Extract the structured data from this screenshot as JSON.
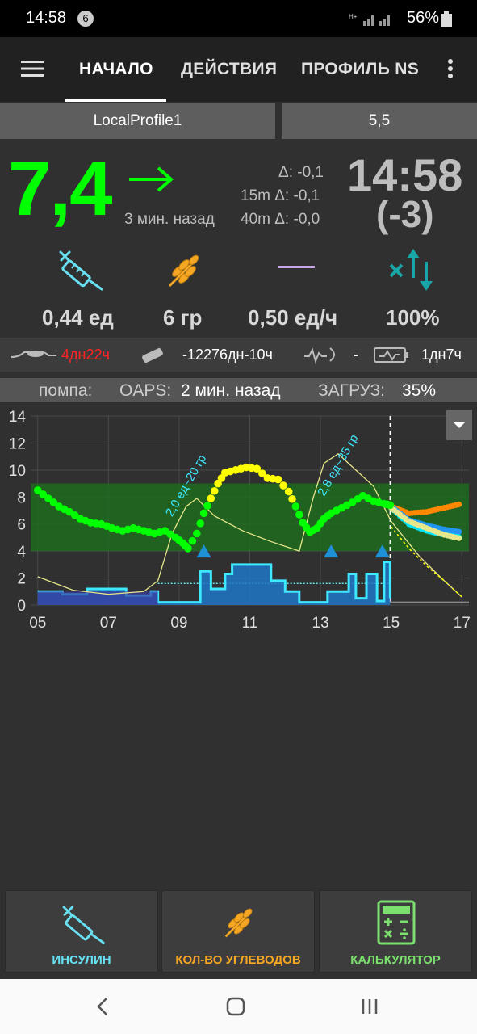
{
  "status_bar": {
    "time": "14:58",
    "notification_count": "6",
    "battery": "56%"
  },
  "tabs": [
    {
      "label": "НАЧАЛО",
      "active": true
    },
    {
      "label": "ДЕЙСТВИЯ",
      "active": false
    },
    {
      "label": "ПРОФИЛЬ NS",
      "active": false
    }
  ],
  "profile": {
    "name": "LocalProfile1",
    "target": "5,5"
  },
  "bg": {
    "value": "7,4",
    "ago": "3 мин. назад",
    "delta": "Δ: -0,1",
    "delta15": "15m Δ: -0,1",
    "delta40": "40m Δ: -0,0",
    "clock": "14:58",
    "clock_offset": "(-3)"
  },
  "summary": {
    "iob": "0,44 ед",
    "cob": "6 гр",
    "basal": "0,50 ед/ч",
    "percent": "100%"
  },
  "devices": {
    "sensor_age": "4дн22ч",
    "reservoir": "-12276дн-10ч",
    "pump_battery": "-",
    "phone_battery": "1дн7ч"
  },
  "pump_status": {
    "pump_label": "помпа:",
    "oaps_label": "OAPS:",
    "oaps_value": "2 мин. назад",
    "load_label": "ЗАГРУЗ:",
    "load_value": "35%"
  },
  "chart_data": {
    "type": "line",
    "x_ticks": [
      "05",
      "07",
      "09",
      "11",
      "13",
      "15",
      "17"
    ],
    "y_ticks": [
      "0",
      "2",
      "4",
      "6",
      "8",
      "10",
      "12",
      "14"
    ],
    "ylim": [
      0,
      14
    ],
    "xlim": [
      4.8,
      17.2
    ],
    "target_range": [
      4,
      9
    ],
    "now": 14.97,
    "annotations": [
      {
        "text": "2,0 ед~20 гр",
        "x": 8.8,
        "y": 6.5
      },
      {
        "text": "2,8 ед~35 гр",
        "x": 13.1,
        "y": 8.0
      }
    ],
    "bg_points": [
      [
        5.0,
        8.5
      ],
      [
        5.3,
        7.9
      ],
      [
        5.6,
        7.3
      ],
      [
        5.9,
        6.9
      ],
      [
        6.2,
        6.4
      ],
      [
        6.5,
        6.1
      ],
      [
        6.8,
        6.0
      ],
      [
        7.1,
        5.7
      ],
      [
        7.4,
        5.5
      ],
      [
        7.7,
        5.7
      ],
      [
        8.0,
        5.5
      ],
      [
        8.3,
        5.3
      ],
      [
        8.6,
        5.5
      ],
      [
        8.9,
        5.0
      ],
      [
        9.1,
        4.6
      ],
      [
        9.25,
        4.2
      ],
      [
        9.5,
        5.3
      ],
      [
        9.7,
        6.8
      ],
      [
        9.9,
        7.9
      ],
      [
        10.1,
        9.0
      ],
      [
        10.3,
        9.8
      ],
      [
        10.6,
        10.0
      ],
      [
        10.9,
        10.2
      ],
      [
        11.2,
        10.1
      ],
      [
        11.5,
        9.4
      ],
      [
        11.8,
        9.3
      ],
      [
        12.1,
        8.4
      ],
      [
        12.3,
        7.3
      ],
      [
        12.5,
        6.1
      ],
      [
        12.7,
        5.4
      ],
      [
        12.9,
        5.7
      ],
      [
        13.1,
        6.4
      ],
      [
        13.3,
        6.8
      ],
      [
        13.6,
        7.2
      ],
      [
        13.9,
        7.6
      ],
      [
        14.2,
        8.1
      ],
      [
        14.5,
        7.7
      ],
      [
        14.8,
        7.5
      ],
      [
        14.97,
        7.4
      ]
    ],
    "bg_yellow_range": [
      9.9,
      12.2
    ],
    "predictions": [
      {
        "color": "#ff8800",
        "points": [
          [
            15.0,
            7.3
          ],
          [
            15.5,
            6.8
          ],
          [
            16.0,
            6.9
          ],
          [
            16.5,
            7.2
          ],
          [
            17.0,
            7.5
          ]
        ]
      },
      {
        "color": "#2196f3",
        "points": [
          [
            15.0,
            7.3
          ],
          [
            15.5,
            6.3
          ],
          [
            16.0,
            5.9
          ],
          [
            16.5,
            5.6
          ],
          [
            17.0,
            5.4
          ]
        ]
      },
      {
        "color": "#00e5ff",
        "points": [
          [
            15.0,
            7.2
          ],
          [
            15.5,
            6.0
          ],
          [
            16.0,
            5.5
          ],
          [
            16.5,
            5.2
          ],
          [
            17.0,
            5.0
          ]
        ]
      },
      {
        "color": "#e6e68a",
        "points": [
          [
            15.0,
            7.2
          ],
          [
            15.5,
            6.2
          ],
          [
            16.0,
            5.7
          ],
          [
            16.5,
            5.2
          ],
          [
            17.0,
            4.9
          ]
        ]
      }
    ],
    "bolus_triangles": [
      [
        9.7,
        4.0
      ],
      [
        13.3,
        4.0
      ],
      [
        14.75,
        4.0
      ]
    ],
    "activity_line": [
      [
        5.0,
        2.1
      ],
      [
        6.0,
        1.1
      ],
      [
        7.0,
        0.8
      ],
      [
        8.0,
        1.0
      ],
      [
        8.4,
        1.8
      ],
      [
        8.8,
        5.3
      ],
      [
        9.2,
        7.3
      ],
      [
        9.5,
        7.9
      ],
      [
        10.0,
        6.6
      ],
      [
        10.8,
        5.5
      ],
      [
        11.6,
        4.7
      ],
      [
        12.4,
        4.0
      ],
      [
        12.8,
        8.0
      ],
      [
        13.1,
        10.5
      ],
      [
        13.5,
        11.2
      ],
      [
        14.0,
        10.0
      ],
      [
        14.5,
        8.8
      ],
      [
        15.0,
        6.2
      ],
      [
        15.8,
        3.6
      ],
      [
        16.5,
        1.8
      ],
      [
        17.0,
        0.6
      ]
    ],
    "basal_points": [
      [
        5.0,
        1.0
      ],
      [
        5.6,
        1.0
      ],
      [
        5.7,
        0.8
      ],
      [
        6.0,
        0.8
      ],
      [
        6.4,
        1.2
      ],
      [
        7.2,
        1.2
      ],
      [
        7.5,
        0.7
      ],
      [
        8.2,
        1.0
      ],
      [
        8.4,
        0.2
      ],
      [
        9.5,
        0.2
      ],
      [
        9.6,
        2.5
      ],
      [
        9.8,
        2.5
      ],
      [
        9.9,
        1.2
      ],
      [
        10.3,
        2.3
      ],
      [
        10.5,
        3.0
      ],
      [
        11.5,
        3.0
      ],
      [
        11.6,
        1.8
      ],
      [
        12.0,
        1.0
      ],
      [
        12.4,
        0.2
      ],
      [
        13.0,
        0.2
      ],
      [
        13.2,
        1.0
      ],
      [
        13.6,
        1.0
      ],
      [
        13.8,
        2.3
      ],
      [
        14.0,
        0.5
      ],
      [
        14.3,
        2.3
      ],
      [
        14.6,
        0.3
      ],
      [
        14.8,
        3.2
      ],
      [
        14.97,
        0.5
      ]
    ],
    "scheduled_basal": 1.6
  },
  "actions": {
    "insulin": "ИНСУЛИН",
    "carbs": "КОЛ-ВО УГЛЕВОДОВ",
    "calculator": "КАЛЬКУЛЯТОР"
  },
  "colors": {
    "bg_in_range": "#00ff00",
    "bg_high": "#ffff00",
    "insulin": "#67e0f2",
    "carbs": "#f5a623",
    "calculator": "#7be06e",
    "sensor_age_warning": "#ff2424"
  }
}
